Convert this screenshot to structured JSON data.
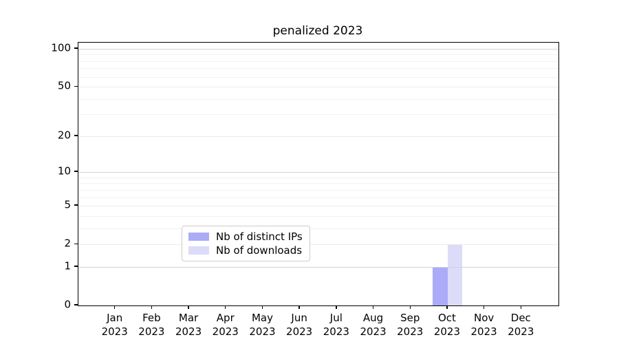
{
  "figure_title": "penalized 2023",
  "chart_data": {
    "type": "bar",
    "title": "penalized 2023",
    "categories": [
      "Jan\n2023",
      "Feb\n2023",
      "Mar\n2023",
      "Apr\n2023",
      "May\n2023",
      "Jun\n2023",
      "Jul\n2023",
      "Aug\n2023",
      "Sep\n2023",
      "Oct\n2023",
      "Nov\n2023",
      "Dec\n2023"
    ],
    "series": [
      {
        "name": "Nb of distinct IPs",
        "color": "#ababf8",
        "values": [
          0,
          0,
          0,
          0,
          0,
          0,
          0,
          0,
          0,
          1,
          0,
          0
        ]
      },
      {
        "name": "Nb of downloads",
        "color": "#dcdcf8",
        "values": [
          0,
          0,
          0,
          0,
          0,
          0,
          0,
          0,
          0,
          2,
          0,
          0
        ]
      }
    ],
    "xlabel": "",
    "ylabel": "",
    "yscale": "log1p",
    "yticks": [
      0,
      1,
      2,
      5,
      10,
      20,
      50,
      100
    ],
    "ylim": [
      0,
      112
    ],
    "grid": "horizontal",
    "legend_position": "lower center"
  },
  "colors": {
    "grid_major": "#d2d2d2",
    "grid_mid": "#ececec",
    "grid_minor": "#f2f2f2",
    "axis": "#000000",
    "legend_border": "#cccccc",
    "background": "#ffffff"
  }
}
